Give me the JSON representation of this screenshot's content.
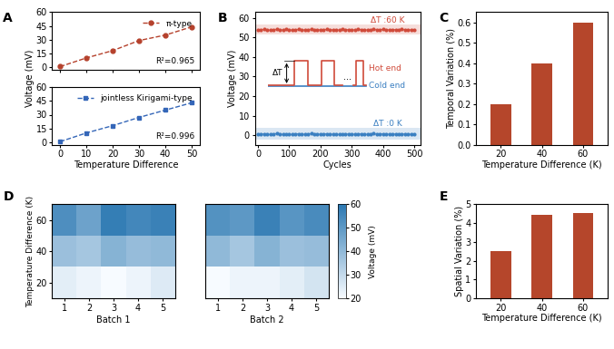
{
  "chart_data": [
    {
      "panel": "A",
      "type": "line",
      "x": [
        0,
        10,
        20,
        30,
        40,
        50
      ],
      "xlim": [
        -3,
        53
      ],
      "xticks": [
        0,
        10,
        20,
        30,
        40,
        50
      ],
      "ylim": [
        -3,
        60
      ],
      "yticks": [
        0,
        15,
        30,
        45,
        60
      ],
      "ylabel": "Voltage (mV)",
      "tick_labels": "y",
      "legend": "upper right",
      "annotations": [
        "R²=0.965"
      ],
      "series": [
        {
          "name": "π-type",
          "color": "#b5412c",
          "marker": "circle",
          "line_style": "dashed",
          "values": [
            0.5,
            10,
            18,
            29,
            35,
            44
          ]
        }
      ]
    },
    {
      "type": "line",
      "x": [
        0,
        10,
        20,
        30,
        40,
        50
      ],
      "xlim": [
        -3,
        53
      ],
      "xticks": [
        0,
        10,
        20,
        30,
        40,
        50
      ],
      "ylim": [
        -3,
        60
      ],
      "yticks": [
        0,
        15,
        30,
        45,
        60
      ],
      "xlabel": "Temperature Difference",
      "legend": "upper right",
      "annotations": [
        "R²=0.996"
      ],
      "series": [
        {
          "name": "jointless Kirigami-type",
          "color": "#3466b8",
          "marker": "square",
          "line_style": "dashed",
          "values": [
            0.5,
            10,
            18,
            27,
            35,
            43
          ]
        }
      ]
    },
    {
      "panel": "B",
      "type": "line",
      "x": [
        0,
        10,
        20,
        30,
        40,
        50,
        60,
        70,
        80,
        90,
        100,
        110,
        120,
        130,
        140,
        150,
        160,
        170,
        180,
        190,
        200,
        210,
        220,
        230,
        240,
        250,
        260,
        270,
        280,
        290,
        300,
        310,
        320,
        330,
        340,
        350,
        360,
        370,
        380,
        390,
        400,
        410,
        420,
        430,
        440,
        450,
        460,
        470,
        480,
        490,
        500
      ],
      "xlim": [
        -10,
        520
      ],
      "xticks": [
        0,
        100,
        200,
        300,
        400,
        500
      ],
      "ylim": [
        -5,
        63
      ],
      "yticks": [
        0,
        10,
        20,
        30,
        40,
        50,
        60
      ],
      "xlabel": "Cycles",
      "ylabel": "Voltage (mV)",
      "series": [
        {
          "name": "ΔT :60 K",
          "color": "#d04a3a",
          "marker": "circle",
          "line_style": "solid",
          "band": [
            51.5,
            56.5
          ],
          "values": [
            54.1,
            53.9,
            54.2,
            54.0,
            53.8,
            54.1,
            54.3,
            54.0,
            53.9,
            54.2,
            54.0,
            53.8,
            54.1,
            54.2,
            54.0,
            53.9,
            54.1,
            54.3,
            54.0,
            53.8,
            54.1,
            54.0,
            54.2,
            53.9,
            54.0,
            54.1,
            53.8,
            54.2,
            54.0,
            54.1,
            53.9,
            54.0,
            54.2,
            54.1,
            53.8,
            54.0,
            54.1,
            54.3,
            53.9,
            54.0,
            54.2,
            54.1,
            53.9,
            54.0,
            54.1,
            53.8,
            54.2,
            54.0,
            54.1,
            53.9,
            54.0
          ]
        },
        {
          "name": "ΔT :0 K",
          "color": "#3a7fc1",
          "marker": "circle",
          "line_style": "solid",
          "band": [
            -2.5,
            3.5
          ],
          "values": [
            0.6,
            0.4,
            0.7,
            0.5,
            0.3,
            0.6,
            0.8,
            0.5,
            0.4,
            0.6,
            0.5,
            0.3,
            0.6,
            0.7,
            0.5,
            0.4,
            0.6,
            0.8,
            0.5,
            0.3,
            0.6,
            0.5,
            0.7,
            0.4,
            0.5,
            0.6,
            0.3,
            0.7,
            0.5,
            0.6,
            0.4,
            0.5,
            0.7,
            0.6,
            0.3,
            0.5,
            0.6,
            0.8,
            0.4,
            0.5,
            0.7,
            0.6,
            0.4,
            0.5,
            0.6,
            0.3,
            0.7,
            0.5,
            0.6,
            0.4,
            0.5
          ]
        }
      ],
      "inset": {
        "delta_label": "ΔT",
        "hot_label": "Hot end",
        "cold_label": "Cold end",
        "ellipsis": "..."
      }
    },
    {
      "panel": "C",
      "type": "bar",
      "categories": [
        "20",
        "40",
        "60"
      ],
      "values": [
        0.2,
        0.4,
        0.6
      ],
      "color": "#b5462b",
      "ylim": [
        0,
        0.65
      ],
      "yticks": [
        0.0,
        0.1,
        0.2,
        0.3,
        0.4,
        0.5,
        0.6
      ],
      "xlabel": "Temperature Difference (K)",
      "ylabel": "Temporal Variation (%)"
    },
    {
      "panel": "D",
      "type": "heatmap",
      "y_categories": [
        "20",
        "40",
        "60"
      ],
      "ylabel": "Temperature Difference (K)",
      "batches": [
        {
          "xlabel": "Batch 1",
          "x_categories": [
            1,
            2,
            3,
            4,
            5
          ],
          "cells": [
            [
              24,
              22,
              20,
              22,
              25
            ],
            [
              38,
              36,
              42,
              39,
              40
            ],
            [
              53,
              47,
              58,
              55,
              57
            ]
          ]
        },
        {
          "xlabel": "Batch 2",
          "x_categories": [
            1,
            2,
            3,
            4,
            5
          ],
          "tick_labels": "x",
          "cells": [
            [
              20,
              22,
              22,
              24,
              27
            ],
            [
              40,
              36,
              42,
              38,
              39
            ],
            [
              52,
              50,
              57,
              51,
              54
            ]
          ]
        }
      ],
      "colorbar": {
        "label": "Voltage (mV)",
        "range": [
          20,
          60
        ],
        "ticks": [
          20,
          30,
          40,
          50,
          60
        ]
      }
    },
    {
      "panel": "E",
      "type": "bar",
      "categories": [
        "20",
        "40",
        "60"
      ],
      "values": [
        2.5,
        4.45,
        4.55
      ],
      "color": "#b5462b",
      "ylim": [
        0,
        5
      ],
      "yticks": [
        0,
        1,
        2,
        3,
        4,
        5
      ],
      "xlabel": "Temperature Difference (K)",
      "ylabel": "Spatial Variation (%)"
    }
  ]
}
